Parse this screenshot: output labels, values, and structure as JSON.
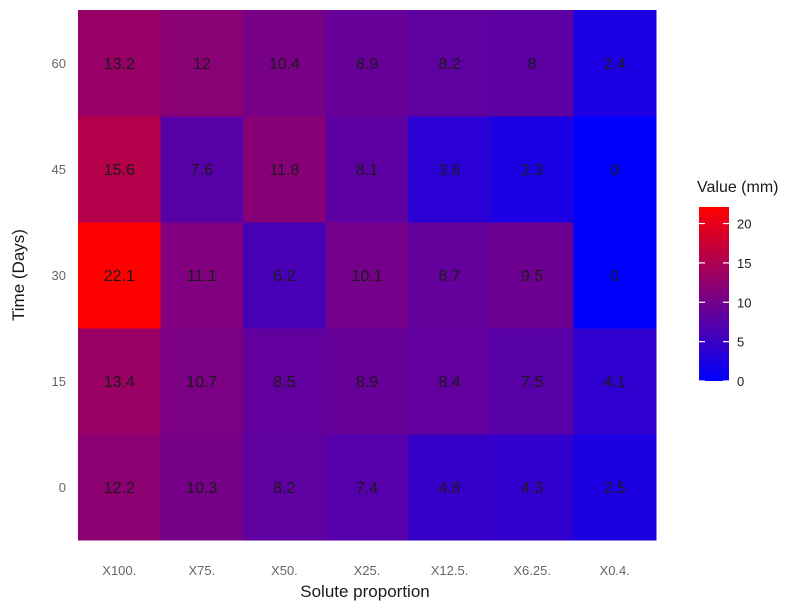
{
  "chart_data": {
    "type": "heatmap",
    "xlabel": "Solute proportion",
    "ylabel": "Time (Days)",
    "x_categories": [
      "X100.",
      "X75.",
      "X50.",
      "X25.",
      "X12.5.",
      "X6.25.",
      "X0.4."
    ],
    "y_categories": [
      "0",
      "15",
      "30",
      "45",
      "60"
    ],
    "values": [
      [
        12.2,
        10.3,
        8.2,
        7.4,
        4.8,
        4.3,
        2.5
      ],
      [
        13.4,
        10.7,
        8.5,
        8.9,
        8.4,
        7.5,
        4.1
      ],
      [
        22.1,
        11.1,
        6.2,
        10.1,
        8.7,
        9.5,
        0
      ],
      [
        15.6,
        7.6,
        11.8,
        8.1,
        3.6,
        2.3,
        0
      ],
      [
        13.2,
        12,
        10.4,
        8.9,
        8.2,
        8,
        2.4
      ]
    ],
    "labels": [
      [
        "12.2",
        "10.3",
        "8.2",
        "7.4",
        "4.8",
        "4.3",
        "2.5"
      ],
      [
        "13.4",
        "10.7",
        "8.5",
        "8.9",
        "8.4",
        "7.5",
        "4.1"
      ],
      [
        "22.1",
        "11.1",
        "6.2",
        "10.1",
        "8.7",
        "9.5",
        "0"
      ],
      [
        "15.6",
        "7.6",
        "11.8",
        "8.1",
        "3.6",
        "2.3",
        "0"
      ],
      [
        "13.2",
        "12",
        "10.4",
        "8.9",
        "8.2",
        "8",
        "2.4"
      ]
    ],
    "legend": {
      "title": "Value (mm)",
      "ticks": [
        "0",
        "5",
        "10",
        "15",
        "20"
      ],
      "tick_values": [
        0,
        5,
        10,
        15,
        20
      ],
      "range": [
        0,
        22.1
      ],
      "low_color": "#0000ff",
      "high_color": "#ff0000",
      "placement": "right"
    },
    "panel_background": "#ebebeb",
    "grid": true
  }
}
